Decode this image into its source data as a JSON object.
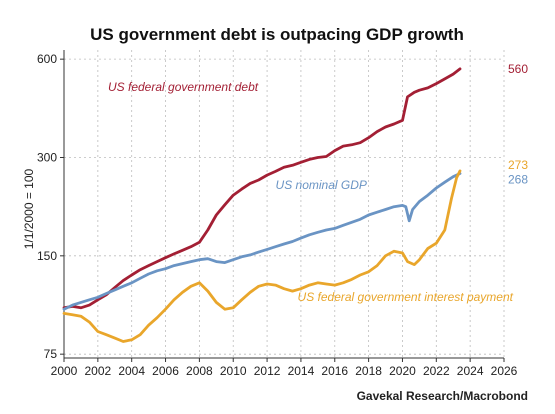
{
  "chart_data": {
    "type": "line",
    "title": "US government debt is outpacing GDP growth",
    "ylabel": "1/1/2000 = 100",
    "source": "Gavekal Research/Macrobond",
    "y_scale": "log",
    "ylim": [
      73,
      640
    ],
    "xlim": [
      2000,
      2026
    ],
    "y_ticks": [
      75,
      150,
      300,
      600
    ],
    "x_ticks": [
      2000,
      2002,
      2004,
      2006,
      2008,
      2010,
      2012,
      2014,
      2016,
      2018,
      2020,
      2022,
      2024,
      2026
    ],
    "grid": true,
    "series": [
      {
        "name": "US federal government debt",
        "color": "#a31f34",
        "end_label": "560",
        "points": [
          [
            2000,
            104
          ],
          [
            2000.5,
            105
          ],
          [
            2001,
            104
          ],
          [
            2001.5,
            106
          ],
          [
            2002,
            110
          ],
          [
            2002.5,
            114
          ],
          [
            2003,
            120
          ],
          [
            2003.5,
            126
          ],
          [
            2004,
            131
          ],
          [
            2004.5,
            136
          ],
          [
            2005,
            140
          ],
          [
            2005.5,
            144
          ],
          [
            2006,
            148
          ],
          [
            2006.5,
            152
          ],
          [
            2007,
            156
          ],
          [
            2007.5,
            160
          ],
          [
            2008,
            165
          ],
          [
            2008.5,
            180
          ],
          [
            2009,
            200
          ],
          [
            2009.5,
            215
          ],
          [
            2010,
            230
          ],
          [
            2010.5,
            240
          ],
          [
            2011,
            250
          ],
          [
            2011.5,
            256
          ],
          [
            2012,
            265
          ],
          [
            2012.5,
            272
          ],
          [
            2013,
            280
          ],
          [
            2013.5,
            284
          ],
          [
            2014,
            290
          ],
          [
            2014.5,
            296
          ],
          [
            2015,
            300
          ],
          [
            2015.5,
            302
          ],
          [
            2016,
            315
          ],
          [
            2016.5,
            325
          ],
          [
            2017,
            328
          ],
          [
            2017.5,
            333
          ],
          [
            2018,
            345
          ],
          [
            2018.5,
            360
          ],
          [
            2019,
            372
          ],
          [
            2019.5,
            380
          ],
          [
            2020,
            390
          ],
          [
            2020.3,
            460
          ],
          [
            2020.7,
            475
          ],
          [
            2021,
            482
          ],
          [
            2021.5,
            490
          ],
          [
            2022,
            505
          ],
          [
            2022.5,
            522
          ],
          [
            2023,
            540
          ],
          [
            2023.4,
            560
          ]
        ]
      },
      {
        "name": "US nominal GDP",
        "color": "#6a94c4",
        "end_label": "268",
        "points": [
          [
            2000,
            103
          ],
          [
            2000.5,
            106
          ],
          [
            2001,
            108
          ],
          [
            2001.5,
            110
          ],
          [
            2002,
            112
          ],
          [
            2002.5,
            115
          ],
          [
            2003,
            118
          ],
          [
            2003.5,
            121
          ],
          [
            2004,
            124
          ],
          [
            2004.5,
            128
          ],
          [
            2005,
            132
          ],
          [
            2005.5,
            135
          ],
          [
            2006,
            137
          ],
          [
            2006.5,
            140
          ],
          [
            2007,
            142
          ],
          [
            2007.5,
            144
          ],
          [
            2008,
            146
          ],
          [
            2008.5,
            147
          ],
          [
            2009,
            144
          ],
          [
            2009.5,
            143
          ],
          [
            2010,
            146
          ],
          [
            2010.5,
            149
          ],
          [
            2011,
            151
          ],
          [
            2011.5,
            154
          ],
          [
            2012,
            157
          ],
          [
            2012.5,
            160
          ],
          [
            2013,
            163
          ],
          [
            2013.5,
            166
          ],
          [
            2014,
            170
          ],
          [
            2014.5,
            174
          ],
          [
            2015,
            177
          ],
          [
            2015.5,
            180
          ],
          [
            2016,
            182
          ],
          [
            2016.5,
            186
          ],
          [
            2017,
            190
          ],
          [
            2017.5,
            194
          ],
          [
            2018,
            200
          ],
          [
            2018.5,
            204
          ],
          [
            2019,
            208
          ],
          [
            2019.5,
            212
          ],
          [
            2020,
            214
          ],
          [
            2020.2,
            212
          ],
          [
            2020.4,
            192
          ],
          [
            2020.6,
            208
          ],
          [
            2021,
            220
          ],
          [
            2021.5,
            230
          ],
          [
            2022,
            242
          ],
          [
            2022.5,
            252
          ],
          [
            2023,
            262
          ],
          [
            2023.4,
            268
          ]
        ]
      },
      {
        "name": "US federal government interest payment",
        "color": "#e9a62b",
        "end_label": "273",
        "points": [
          [
            2000,
            100
          ],
          [
            2000.5,
            99
          ],
          [
            2001,
            98
          ],
          [
            2001.5,
            94
          ],
          [
            2002,
            88
          ],
          [
            2002.5,
            86
          ],
          [
            2003,
            84
          ],
          [
            2003.5,
            82
          ],
          [
            2004,
            83
          ],
          [
            2004.5,
            86
          ],
          [
            2005,
            92
          ],
          [
            2005.5,
            97
          ],
          [
            2006,
            103
          ],
          [
            2006.5,
            110
          ],
          [
            2007,
            116
          ],
          [
            2007.5,
            121
          ],
          [
            2008,
            124
          ],
          [
            2008.5,
            117
          ],
          [
            2009,
            108
          ],
          [
            2009.5,
            103
          ],
          [
            2010,
            104
          ],
          [
            2010.5,
            110
          ],
          [
            2011,
            116
          ],
          [
            2011.5,
            121
          ],
          [
            2012,
            123
          ],
          [
            2012.5,
            122
          ],
          [
            2013,
            119
          ],
          [
            2013.5,
            117
          ],
          [
            2014,
            119
          ],
          [
            2014.5,
            122
          ],
          [
            2015,
            124
          ],
          [
            2015.5,
            123
          ],
          [
            2016,
            122
          ],
          [
            2016.5,
            124
          ],
          [
            2017,
            127
          ],
          [
            2017.5,
            131
          ],
          [
            2018,
            134
          ],
          [
            2018.5,
            140
          ],
          [
            2019,
            150
          ],
          [
            2019.5,
            155
          ],
          [
            2020,
            153
          ],
          [
            2020.3,
            144
          ],
          [
            2020.7,
            141
          ],
          [
            2021,
            146
          ],
          [
            2021.5,
            158
          ],
          [
            2022,
            164
          ],
          [
            2022.5,
            180
          ],
          [
            2022.9,
            225
          ],
          [
            2023.2,
            260
          ],
          [
            2023.4,
            273
          ]
        ]
      }
    ]
  }
}
